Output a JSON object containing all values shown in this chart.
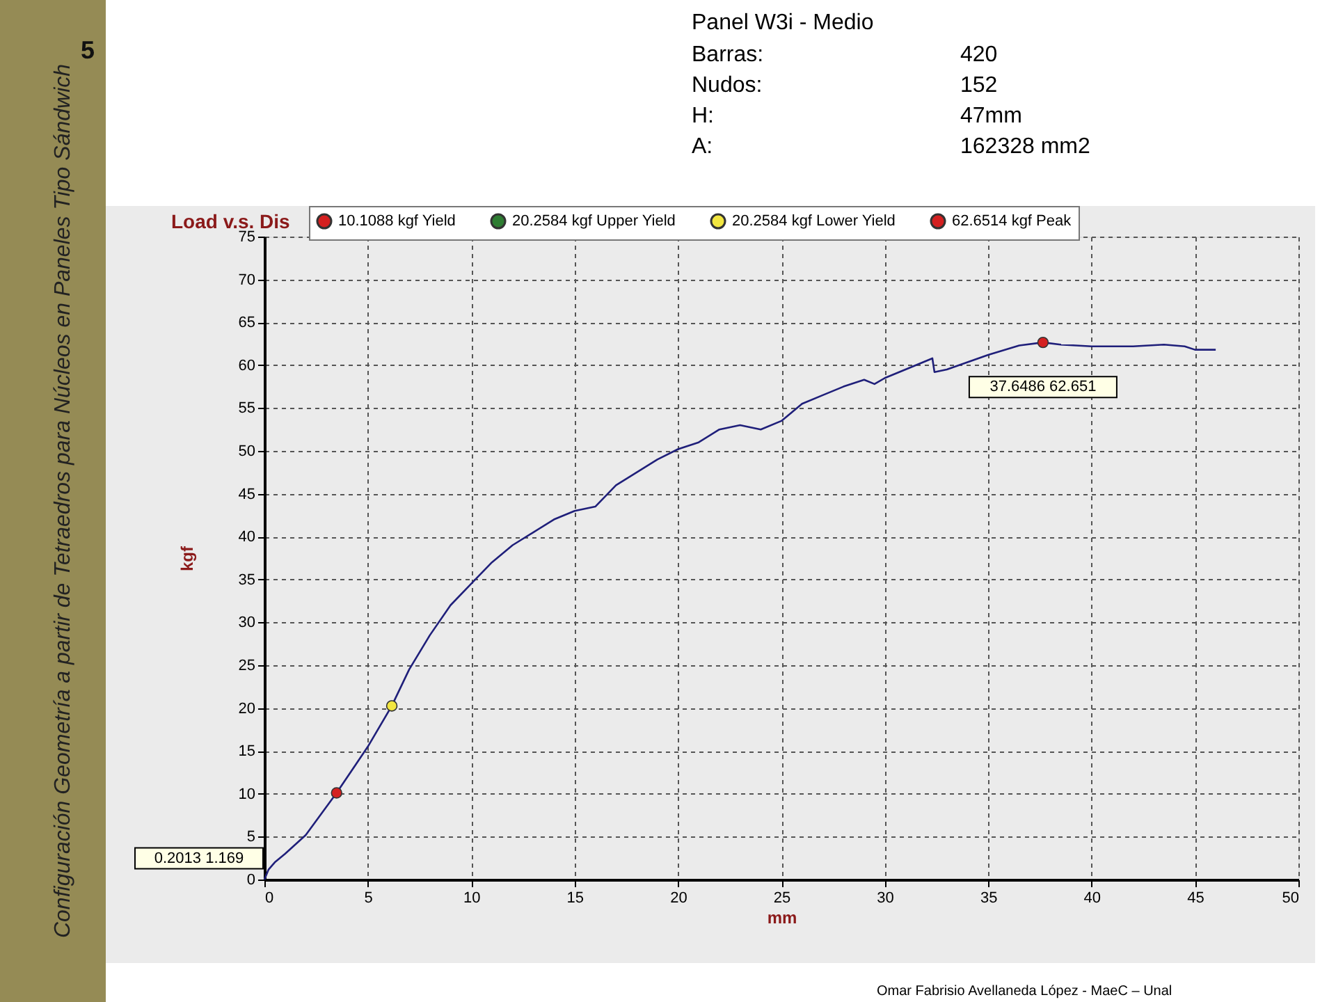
{
  "chart_data": {
    "type": "line",
    "title": "Load v.s. Dis",
    "xlabel": "mm",
    "ylabel": "kgf",
    "xlim": [
      0,
      50
    ],
    "ylim": [
      0,
      75
    ],
    "xticks": [
      0,
      5,
      10,
      15,
      20,
      25,
      30,
      35,
      40,
      45,
      50
    ],
    "yticks": [
      0,
      5,
      10,
      15,
      20,
      25,
      30,
      35,
      40,
      45,
      50,
      55,
      60,
      65,
      70,
      75
    ],
    "grid": true,
    "legend": "top",
    "series": [
      {
        "color": "#1f1f7a",
        "x": [
          0,
          0.2013,
          0.5,
          1,
          2,
          3.49,
          5,
          6.16,
          7,
          8,
          9,
          10,
          11,
          12,
          13,
          14,
          15,
          16,
          17,
          18,
          19,
          20,
          21,
          22,
          23,
          24,
          25,
          26,
          27,
          28,
          29,
          29.5,
          30,
          31,
          32.3,
          32.4,
          33,
          35,
          36.5,
          37.6486,
          38.5,
          40,
          42,
          43.5,
          44.5,
          45,
          46
        ],
        "values": [
          0,
          1.169,
          2,
          3,
          5.2,
          10.1,
          15.5,
          20.26,
          24.5,
          28.5,
          32,
          34.5,
          37,
          39,
          40.5,
          42,
          43,
          43.5,
          46,
          47.5,
          49,
          50.2,
          51,
          52.5,
          53,
          52.5,
          53.5,
          55.5,
          56.5,
          57.5,
          58.3,
          57.8,
          58.5,
          59.5,
          60.8,
          59.2,
          59.5,
          61.2,
          62.3,
          62.651,
          62.4,
          62.2,
          62.2,
          62.4,
          62.2,
          61.8,
          61.8
        ]
      },
      {
        "type": "scatter",
        "name": "10.1088 kgf Yield",
        "color": "#d42020",
        "marker": "circle",
        "x": [
          3.49
        ],
        "values": [
          10.1088
        ]
      },
      {
        "type": "scatter",
        "name": "20.2584 kgf Upper Yield",
        "color": "#2e7d32",
        "marker": "circle",
        "x": [
          null
        ],
        "values": [
          null
        ]
      },
      {
        "type": "scatter",
        "name": "20.2584 kgf Lower Yield",
        "color": "#f2e640",
        "marker": "circle",
        "x": [
          6.16
        ],
        "values": [
          20.2584
        ]
      },
      {
        "type": "scatter",
        "name": "62.6514 kgf Peak",
        "color": "#d42020",
        "marker": "circle",
        "x": [
          37.6486
        ],
        "values": [
          62.6514
        ]
      }
    ],
    "annotations": [
      {
        "text": "0.2013 1.169",
        "x": 0.2013,
        "y": 1.169
      },
      {
        "text": "37.6486 62.651",
        "x": 37.6486,
        "y": 62.651
      },
      "Configuración Geometría a partir de Tetraedros para Núcleos en Paneles Tipo Sándwich",
      "5",
      "Panel W3i  - Medio",
      "Barras:",
      "420",
      "Nudos:",
      "152",
      "H:",
      "47mm",
      "A:",
      "162328 mm2",
      "Omar Fabrisio Avellaneda López -  MaeC – Unal"
    ]
  }
}
